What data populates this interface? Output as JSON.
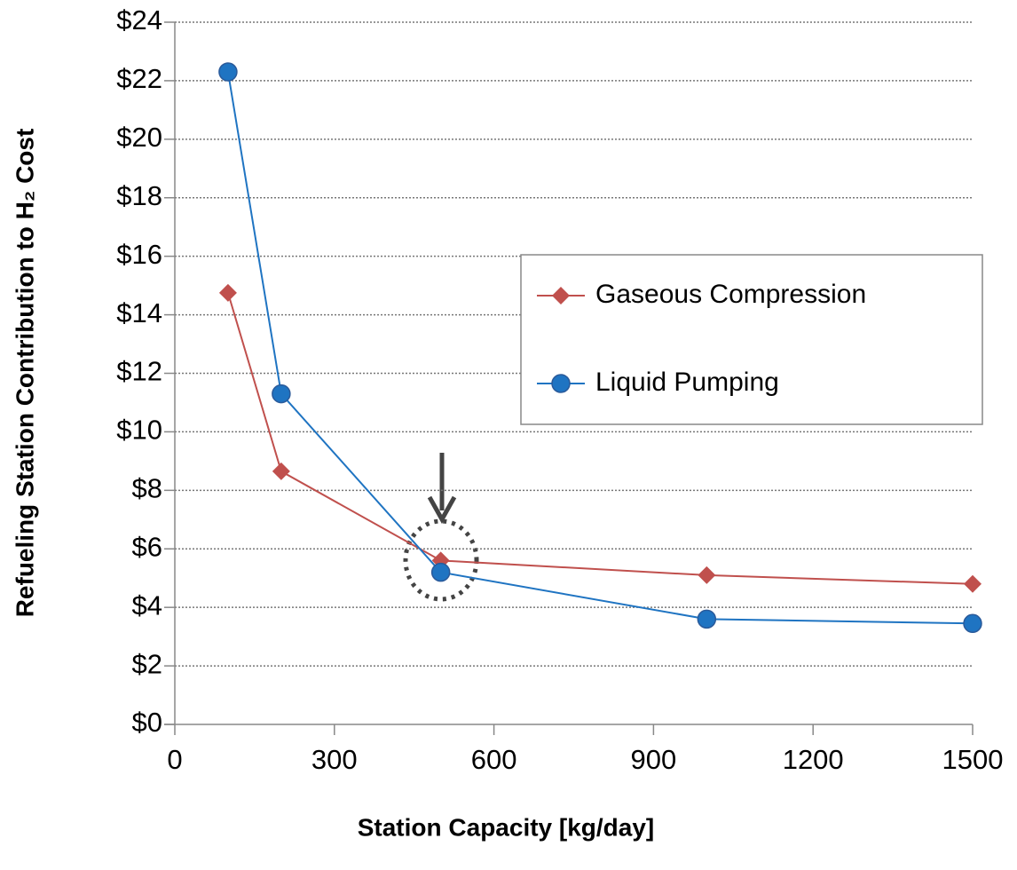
{
  "chart_data": {
    "type": "line",
    "x_label": "Station Capacity [kg/day]",
    "y_label": "Refueling Station Contribution to H₂ Cost",
    "x": [
      100,
      200,
      500,
      1000,
      1500
    ],
    "series": [
      {
        "name": "Gaseous Compression",
        "color": "#c0504d",
        "marker": "diamond",
        "values": [
          14.75,
          8.65,
          5.6,
          5.1,
          4.8
        ]
      },
      {
        "name": "Liquid Pumping",
        "color": "#1f74c2",
        "marker": "circle",
        "values": [
          22.3,
          11.3,
          5.2,
          3.6,
          3.45
        ]
      }
    ],
    "xlim": [
      0,
      1500
    ],
    "xticks": [
      0,
      300,
      600,
      900,
      1200,
      1500
    ],
    "ylim": [
      0,
      24
    ],
    "yticks": [
      {
        "value": 0,
        "label": "$0"
      },
      {
        "value": 2,
        "label": "$2"
      },
      {
        "value": 4,
        "label": "$4"
      },
      {
        "value": 6,
        "label": "$6"
      },
      {
        "value": 8,
        "label": "$8"
      },
      {
        "value": 10,
        "label": "$10"
      },
      {
        "value": 12,
        "label": "$12"
      },
      {
        "value": 14,
        "label": "$14"
      },
      {
        "value": 16,
        "label": "$16"
      },
      {
        "value": 18,
        "label": "$18"
      },
      {
        "value": 20,
        "label": "$20"
      },
      {
        "value": 22,
        "label": "$22"
      },
      {
        "value": 24,
        "label": "$24"
      }
    ],
    "grid": true,
    "legend": "right"
  }
}
